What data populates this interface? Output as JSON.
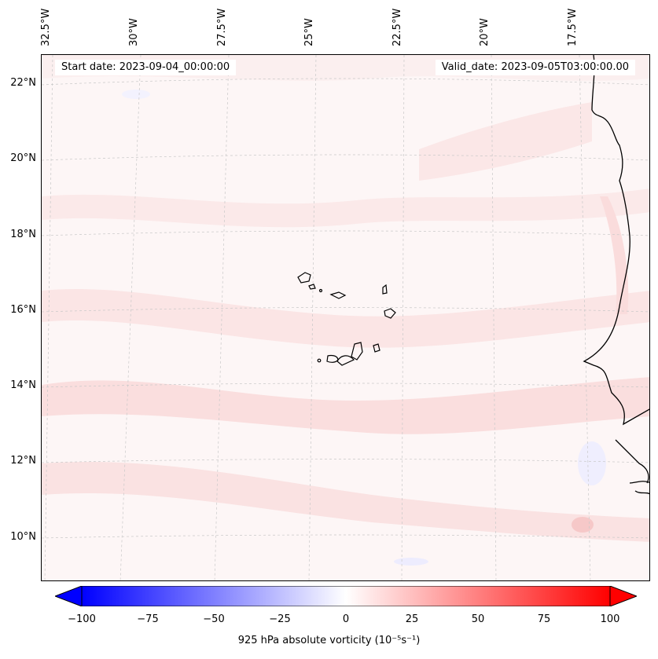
{
  "map": {
    "start_date": "Start date: 2023-09-04_00:00:00",
    "valid_date": "Valid_date: 2023-09-05T03:00:00.00",
    "lon_labels": [
      "32.5°W",
      "30°W",
      "27.5°W",
      "25°W",
      "22.5°W",
      "20°W",
      "17.5°W"
    ],
    "lat_labels": [
      "22°N",
      "20°N",
      "18°N",
      "16°N",
      "14°N",
      "12°N",
      "10°N"
    ],
    "colors": {
      "background_tint": "#fdf6f6",
      "positive": "#ff0000",
      "negative": "#0000ff",
      "coastline": "#000000",
      "gridline": "#c8c8c8"
    }
  },
  "colorbar": {
    "ticks": [
      "−100",
      "−75",
      "−50",
      "−25",
      "0",
      "25",
      "50",
      "75",
      "100"
    ],
    "caption": "925 hPa absolute vorticity (10⁻⁵s⁻¹)",
    "min": -100,
    "max": 100
  }
}
